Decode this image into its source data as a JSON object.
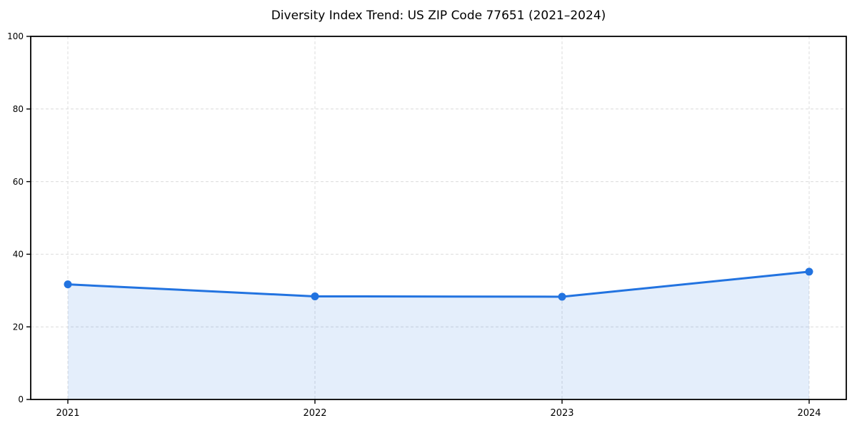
{
  "page": {
    "background": "#ffffff"
  },
  "chart_data": {
    "type": "area",
    "title": "Diversity Index Trend: US ZIP Code 77651 (2021–2024)",
    "x": [
      2021,
      2022,
      2023,
      2024
    ],
    "xticklabels": [
      "2021",
      "2022",
      "2023",
      "2024"
    ],
    "series": [
      {
        "name": "Diversity Index",
        "values": [
          31.7,
          28.4,
          28.3,
          35.2
        ]
      }
    ],
    "xlabel": "",
    "ylabel": "",
    "ylim": [
      0,
      100
    ],
    "yticks": [
      0,
      20,
      40,
      60,
      80,
      100
    ],
    "grid": "dashed",
    "legend": "none",
    "colors": {
      "line": "#2273e0",
      "marker": "#2273e0",
      "fill": "rgba(34, 115, 224, 0.12)",
      "grid": "#dcdcdc",
      "spine": "#000000",
      "tick_text": "#000000"
    }
  }
}
